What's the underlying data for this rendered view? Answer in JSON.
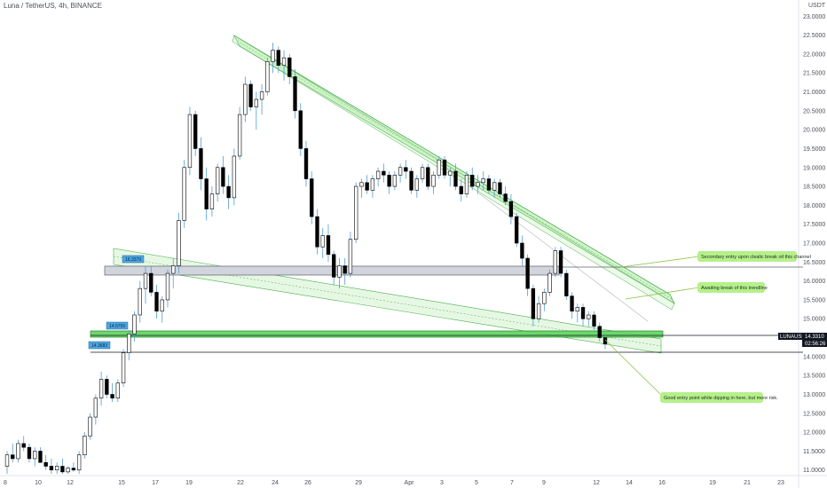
{
  "header": {
    "pair_title": "Luna / TetherUS, 4h, BINANCE"
  },
  "chart_data": {
    "type": "candlestick",
    "currency_label": "USDT",
    "y_axis": {
      "min": 10.9,
      "max": 23.1,
      "ticks": [
        "11.0000",
        "11.5000",
        "12.0000",
        "12.5000",
        "13.0000",
        "13.5000",
        "14.0000",
        "14.5000",
        "15.0000",
        "15.5000",
        "16.0000",
        "16.5000",
        "17.0000",
        "17.5000",
        "18.0000",
        "18.5000",
        "19.0000",
        "19.5000",
        "20.0000",
        "20.5000",
        "21.0000",
        "21.5000",
        "22.0000",
        "22.5000",
        "23.0000"
      ]
    },
    "x_axis": {
      "ticks": [
        "8",
        "10",
        "12",
        "15",
        "17",
        "19",
        "22",
        "24",
        "26",
        "29",
        "Apr",
        "3",
        "5",
        "7",
        "9",
        "12",
        "14",
        "16",
        "19",
        "21",
        "23"
      ]
    },
    "last_price": {
      "symbol": "LUNAUSDT",
      "value": "14.3310",
      "countdown": "02:56:26",
      "color": "#131722"
    },
    "price_tags": [
      "14.3683",
      "14.5759",
      "16.3379"
    ],
    "annotations": [
      "Secondary entry  upon clealic break oil this channel",
      "Awaiting break of this trendline",
      "Good entry point while dipping in here, but more risk."
    ],
    "levels": [
      {
        "name": "support-zone-upper",
        "low": 16.1,
        "high": 16.35,
        "color": "#b2b5be"
      },
      {
        "name": "support-zone-lower",
        "low": 14.4,
        "high": 14.55,
        "color": "#5bd65b"
      },
      {
        "name": "level-line-upper",
        "value": 14.5
      },
      {
        "name": "level-line-lower",
        "value": 14.08
      }
    ],
    "colors": {
      "candle": "#000000",
      "wick": "#4f9bd9",
      "channel_fill": "#c8f0c0",
      "channel_border": "#4caf50",
      "callout": "#b5f08a",
      "tag": "#4ea5e0"
    },
    "candles": [
      [
        11.1,
        11.5,
        10.9,
        11.4
      ],
      [
        11.4,
        11.7,
        11.2,
        11.3
      ],
      [
        11.3,
        11.8,
        11.2,
        11.7
      ],
      [
        11.7,
        11.9,
        11.5,
        11.6
      ],
      [
        11.6,
        11.7,
        11.2,
        11.3
      ],
      [
        11.3,
        11.6,
        11.1,
        11.5
      ],
      [
        11.5,
        11.6,
        11.2,
        11.2
      ],
      [
        11.2,
        11.4,
        11.0,
        11.1
      ],
      [
        11.1,
        11.3,
        10.9,
        11.0
      ],
      [
        11.0,
        11.2,
        10.9,
        11.1
      ],
      [
        11.1,
        11.3,
        10.9,
        10.95
      ],
      [
        10.95,
        11.1,
        10.9,
        11.05
      ],
      [
        11.05,
        11.2,
        10.95,
        11.0
      ],
      [
        11.0,
        11.5,
        10.9,
        11.4
      ],
      [
        11.4,
        12.0,
        11.3,
        11.9
      ],
      [
        11.9,
        12.5,
        11.8,
        12.4
      ],
      [
        12.4,
        13.0,
        12.2,
        12.9
      ],
      [
        12.9,
        13.6,
        12.7,
        13.4
      ],
      [
        13.4,
        13.5,
        12.9,
        13.0
      ],
      [
        13.0,
        13.3,
        12.8,
        12.9
      ],
      [
        12.9,
        13.4,
        12.8,
        13.3
      ],
      [
        13.3,
        14.2,
        13.2,
        14.1
      ],
      [
        14.1,
        14.7,
        13.9,
        14.6
      ],
      [
        14.6,
        15.2,
        14.4,
        15.1
      ],
      [
        15.1,
        16.0,
        14.9,
        15.8
      ],
      [
        15.8,
        16.4,
        15.4,
        16.2
      ],
      [
        16.2,
        16.4,
        15.6,
        15.7
      ],
      [
        15.7,
        15.9,
        15.0,
        15.2
      ],
      [
        15.2,
        15.6,
        14.9,
        15.5
      ],
      [
        15.5,
        16.3,
        15.3,
        16.2
      ],
      [
        16.2,
        16.6,
        15.8,
        16.4
      ],
      [
        16.4,
        17.8,
        16.2,
        17.6
      ],
      [
        17.6,
        19.2,
        17.4,
        19.0
      ],
      [
        19.0,
        20.6,
        18.8,
        20.4
      ],
      [
        20.4,
        20.5,
        19.3,
        19.5
      ],
      [
        19.5,
        19.8,
        18.4,
        18.7
      ],
      [
        18.7,
        19.0,
        17.6,
        17.9
      ],
      [
        17.9,
        18.5,
        17.7,
        18.3
      ],
      [
        18.3,
        19.1,
        18.1,
        19.0
      ],
      [
        19.0,
        19.3,
        18.3,
        18.5
      ],
      [
        18.5,
        18.8,
        17.9,
        18.2
      ],
      [
        18.2,
        19.5,
        18.0,
        19.3
      ],
      [
        19.3,
        20.6,
        19.2,
        20.4
      ],
      [
        20.4,
        21.4,
        20.2,
        21.2
      ],
      [
        21.2,
        21.3,
        20.5,
        20.6
      ],
      [
        20.6,
        21.0,
        20.0,
        20.8
      ],
      [
        20.8,
        21.2,
        20.4,
        21.0
      ],
      [
        21.0,
        21.9,
        20.9,
        21.8
      ],
      [
        21.8,
        22.3,
        21.5,
        22.1
      ],
      [
        22.1,
        22.2,
        21.5,
        21.7
      ],
      [
        21.7,
        22.1,
        21.3,
        21.9
      ],
      [
        21.9,
        22.0,
        21.2,
        21.4
      ],
      [
        21.4,
        21.6,
        20.3,
        20.5
      ],
      [
        20.5,
        20.7,
        19.3,
        19.5
      ],
      [
        19.5,
        19.7,
        18.5,
        18.7
      ],
      [
        18.7,
        18.9,
        17.5,
        17.7
      ],
      [
        17.7,
        17.9,
        16.7,
        16.9
      ],
      [
        16.9,
        17.4,
        16.6,
        17.2
      ],
      [
        17.2,
        17.5,
        16.5,
        16.7
      ],
      [
        16.7,
        16.8,
        15.9,
        16.1
      ],
      [
        16.1,
        16.6,
        15.8,
        16.4
      ],
      [
        16.4,
        16.6,
        15.9,
        16.2
      ],
      [
        16.2,
        17.3,
        16.1,
        17.1
      ],
      [
        17.1,
        18.6,
        17.0,
        18.5
      ],
      [
        18.5,
        18.7,
        18.2,
        18.6
      ],
      [
        18.6,
        18.8,
        18.3,
        18.4
      ],
      [
        18.4,
        18.8,
        18.2,
        18.7
      ],
      [
        18.7,
        19.0,
        18.5,
        18.9
      ],
      [
        18.9,
        19.1,
        18.6,
        18.8
      ],
      [
        18.8,
        18.9,
        18.3,
        18.5
      ],
      [
        18.5,
        18.9,
        18.4,
        18.8
      ],
      [
        18.8,
        19.1,
        18.6,
        19.0
      ],
      [
        19.0,
        19.2,
        18.7,
        18.9
      ],
      [
        18.9,
        19.0,
        18.3,
        18.4
      ],
      [
        18.4,
        18.8,
        18.2,
        18.7
      ],
      [
        18.7,
        19.1,
        18.6,
        19.0
      ],
      [
        19.0,
        19.1,
        18.4,
        18.5
      ],
      [
        18.5,
        18.9,
        18.3,
        18.8
      ],
      [
        18.8,
        19.3,
        18.7,
        19.2
      ],
      [
        19.2,
        19.3,
        18.7,
        18.8
      ],
      [
        18.8,
        19.0,
        18.5,
        18.9
      ],
      [
        18.9,
        19.1,
        18.4,
        18.5
      ],
      [
        18.5,
        18.7,
        18.1,
        18.3
      ],
      [
        18.3,
        18.9,
        18.2,
        18.8
      ],
      [
        18.8,
        19.0,
        18.4,
        18.5
      ],
      [
        18.5,
        18.8,
        18.3,
        18.6
      ],
      [
        18.6,
        18.9,
        18.4,
        18.7
      ],
      [
        18.7,
        18.8,
        18.3,
        18.4
      ],
      [
        18.4,
        18.7,
        18.2,
        18.6
      ],
      [
        18.6,
        18.7,
        18.2,
        18.3
      ],
      [
        18.3,
        18.5,
        18.0,
        18.1
      ],
      [
        18.1,
        18.3,
        17.5,
        17.7
      ],
      [
        17.7,
        17.8,
        16.9,
        17.0
      ],
      [
        17.0,
        17.2,
        16.4,
        16.6
      ],
      [
        16.6,
        16.7,
        15.6,
        15.8
      ],
      [
        15.8,
        15.9,
        14.8,
        15.0
      ],
      [
        15.0,
        15.6,
        14.9,
        15.4
      ],
      [
        15.4,
        15.8,
        15.2,
        15.7
      ],
      [
        15.7,
        16.3,
        15.6,
        16.2
      ],
      [
        16.2,
        16.9,
        16.1,
        16.8
      ],
      [
        16.8,
        16.9,
        16.1,
        16.2
      ],
      [
        16.2,
        16.3,
        15.5,
        15.6
      ],
      [
        15.6,
        15.7,
        15.0,
        15.2
      ],
      [
        15.2,
        15.4,
        14.9,
        15.3
      ],
      [
        15.3,
        15.4,
        14.8,
        15.0
      ],
      [
        15.0,
        15.2,
        14.8,
        15.1
      ],
      [
        15.1,
        15.2,
        14.7,
        14.8
      ],
      [
        14.8,
        14.9,
        14.4,
        14.5
      ],
      [
        14.5,
        14.6,
        14.2,
        14.33
      ]
    ]
  }
}
